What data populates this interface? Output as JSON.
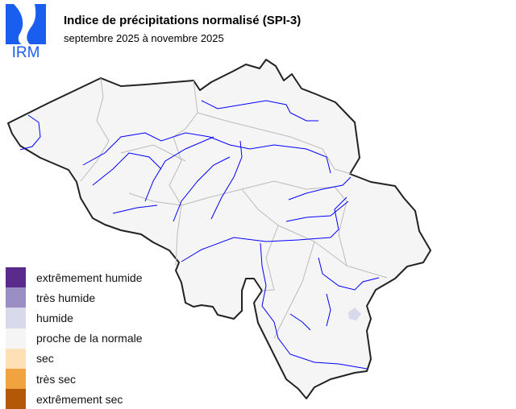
{
  "header": {
    "logo_text": "IRM",
    "title": "Indice de précipitations normalisé (SPI-3)",
    "subtitle": "septembre 2025 à novembre 2025"
  },
  "colors": {
    "logo": "#1a5ef0",
    "border": "#222222",
    "province_lines": "#bbbbbb",
    "rivers": "#0000ff",
    "land": "#f5f5f5"
  },
  "map_values": {
    "dominant_class": "proche de la normale",
    "local_patch_class": "humide"
  },
  "legend": [
    {
      "label": "extrêmement humide",
      "color": "#5a2a8c"
    },
    {
      "label": "très humide",
      "color": "#9a8ec4"
    },
    {
      "label": "humide",
      "color": "#d9d9ec"
    },
    {
      "label": "proche de la normale",
      "color": "#f5f5f5"
    },
    {
      "label": "sec",
      "color": "#fde0b6"
    },
    {
      "label": "très sec",
      "color": "#f0a33f"
    },
    {
      "label": "extrêmement sec",
      "color": "#b35806"
    }
  ]
}
